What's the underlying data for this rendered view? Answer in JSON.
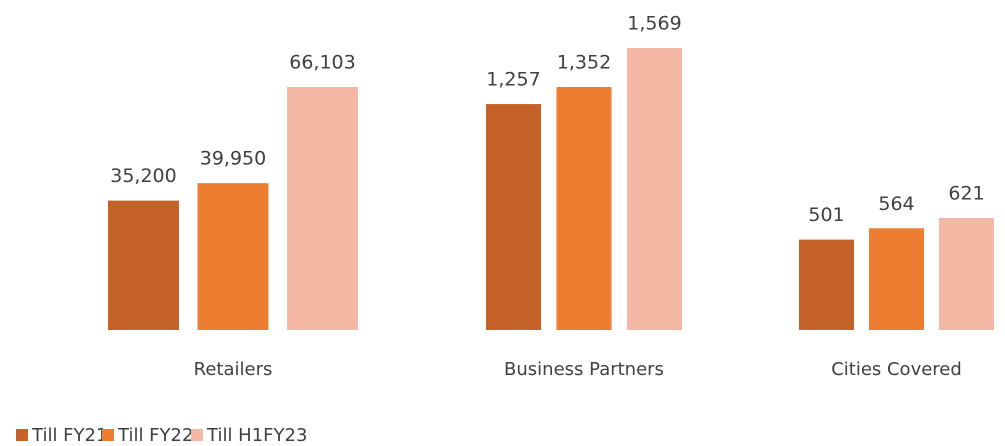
{
  "chart_data": {
    "type": "bar",
    "categories": [
      "Retailers",
      "Business Partners",
      "Cities Covered"
    ],
    "series": [
      {
        "name": "Till FY21",
        "color": "#c5622a",
        "values": [
          35200,
          1257,
          501
        ],
        "value_labels": [
          "35,200",
          "1,257",
          "501"
        ]
      },
      {
        "name": "Till FY22",
        "color": "#ed7d31",
        "values": [
          39950,
          1352,
          564
        ],
        "value_labels": [
          "39,950",
          "1,352",
          "564"
        ]
      },
      {
        "name": "Till H1FY23",
        "color": "#f4b8a4",
        "values": [
          66103,
          1569,
          621
        ],
        "value_labels": [
          "66,103",
          "1,569",
          "621"
        ]
      }
    ],
    "legend": "bottom-left"
  }
}
